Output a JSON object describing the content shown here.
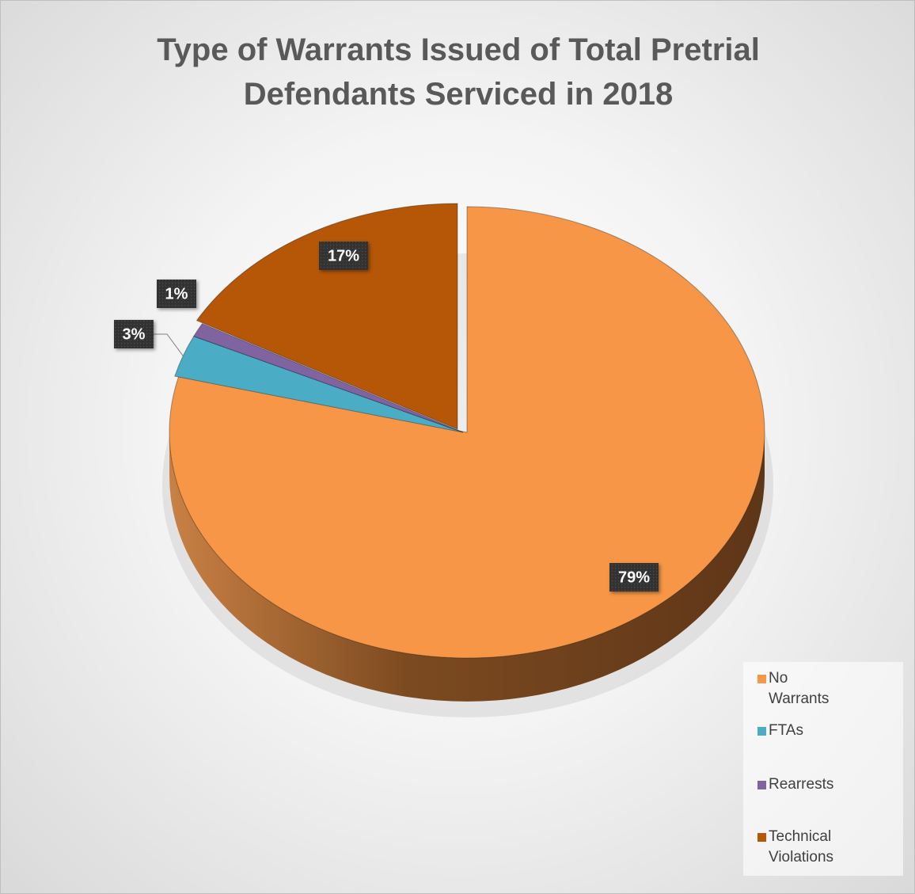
{
  "chart_data": {
    "type": "pie",
    "title": "Type of Warrants Issued of Total Pretrial Defendants Serviced in 2018",
    "categories": [
      "No Warrants",
      "FTAs",
      "Rearrests",
      "Technical Violations"
    ],
    "values": [
      79,
      3,
      1,
      17
    ],
    "value_labels": [
      "79%",
      "3%",
      "1%",
      "17%"
    ],
    "colors": [
      "#f79646",
      "#4bacc6",
      "#8064a2",
      "#b65708"
    ],
    "legend": "right"
  }
}
